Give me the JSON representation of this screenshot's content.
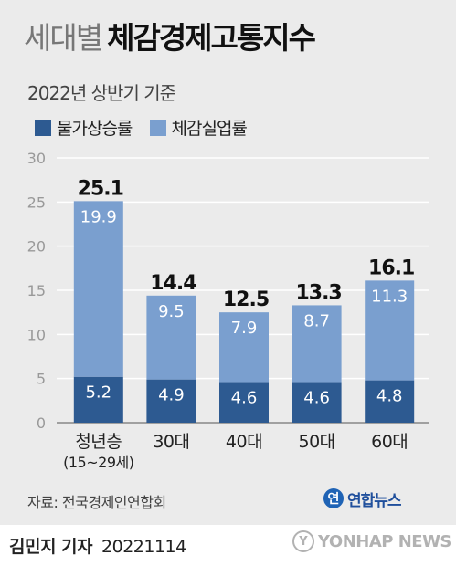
{
  "header": {
    "title_light": "세대별",
    "title_bold": "체감경제고통지수",
    "subtitle": "2022년 상반기 기준"
  },
  "legend": [
    {
      "label": "물가상승률",
      "color": "#2d5a91"
    },
    {
      "label": "체감실업률",
      "color": "#7a9fcf"
    }
  ],
  "chart_data": {
    "type": "bar",
    "stacked": true,
    "categories": [
      "청년층\n(15~29세)",
      "30대",
      "40대",
      "50대",
      "60대"
    ],
    "series": [
      {
        "name": "물가상승률",
        "values": [
          5.2,
          4.9,
          4.6,
          4.6,
          4.8
        ],
        "color": "#2d5a91"
      },
      {
        "name": "체감실업률",
        "values": [
          19.9,
          9.5,
          7.9,
          8.7,
          11.3
        ],
        "color": "#7a9fcf"
      }
    ],
    "totals": [
      25.1,
      14.4,
      12.5,
      13.3,
      16.1
    ],
    "ylim": [
      0,
      30
    ],
    "yticks": [
      0,
      5,
      10,
      15,
      20,
      25,
      30
    ],
    "grid": true
  },
  "footer": {
    "source": "자료: 전국경제인연합회",
    "logo_mark": "연",
    "logo_text": "연합뉴스",
    "reporter": "김민지 기자",
    "date": "20221114",
    "watermark_mark": "Y",
    "watermark_text": "YONHAP NEWS"
  }
}
